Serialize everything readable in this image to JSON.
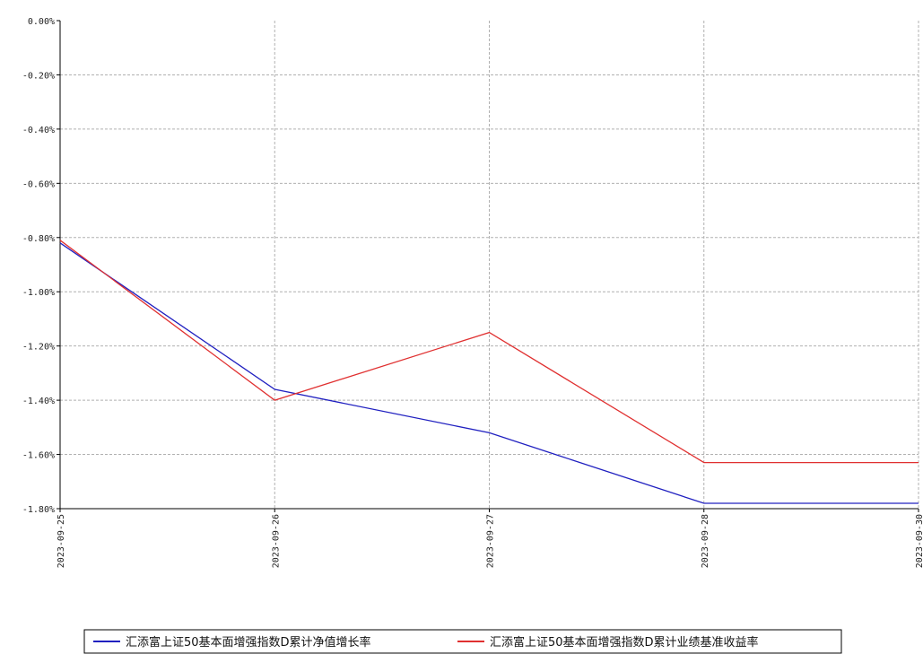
{
  "chart_data": {
    "type": "line",
    "title": "",
    "xlabel": "",
    "ylabel": "",
    "x": [
      "2023-09-25",
      "2023-09-26",
      "2023-09-27",
      "2023-09-28",
      "2023-09-30"
    ],
    "ylim": [
      -1.8,
      0.0
    ],
    "yticks": [
      0.0,
      -0.2,
      -0.4,
      -0.6,
      -0.8,
      -1.0,
      -1.2,
      -1.4,
      -1.6,
      -1.8
    ],
    "ytick_labels": [
      "0.00%",
      "-0.20%",
      "-0.40%",
      "-0.60%",
      "-0.80%",
      "-1.00%",
      "-1.20%",
      "-1.40%",
      "-1.60%",
      "-1.80%"
    ],
    "grid": true,
    "legend_position": "bottom",
    "series": [
      {
        "name": "汇添富上证50基本面增强指数D累计净值增长率",
        "color": "#2020c0",
        "values": [
          -0.82,
          -1.36,
          -1.52,
          -1.78,
          -1.78
        ]
      },
      {
        "name": "汇添富上证50基本面增强指数D累计业绩基准收益率",
        "color": "#e03030",
        "values": [
          -0.81,
          -1.4,
          -1.15,
          -1.63,
          -1.63
        ]
      }
    ]
  }
}
